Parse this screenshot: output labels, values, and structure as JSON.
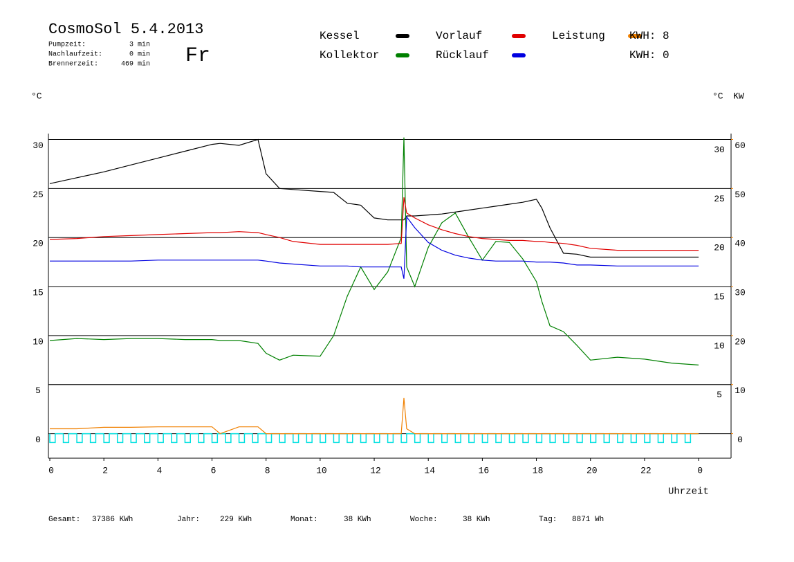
{
  "chart_data": {
    "type": "line",
    "title": "CosmoSol 5.4.2013",
    "info": [
      {
        "label": "Pumpzeit:",
        "value": "3 min"
      },
      {
        "label": "Nachlaufzeit:",
        "value": "0 min"
      },
      {
        "label": "Brennerzeit:",
        "value": "469 min"
      }
    ],
    "weekday": "Fr",
    "weekday_color": "#0000cc",
    "x": [
      0,
      1,
      2,
      3,
      4,
      5,
      6,
      6.3,
      7,
      7.7,
      8,
      8.5,
      9,
      10,
      10.5,
      11,
      11.5,
      12,
      12.5,
      13,
      13.1,
      13.2,
      13.5,
      14,
      14.5,
      15,
      15.5,
      16,
      16.5,
      17,
      17.5,
      18,
      18.2,
      18.5,
      19,
      19.5,
      20,
      21,
      22,
      23,
      24
    ],
    "series": [
      {
        "name": "Kessel",
        "color": "#000000",
        "values": [
          25.5,
          26.1,
          26.7,
          27.4,
          28.1,
          28.8,
          29.5,
          29.6,
          29.4,
          30.0,
          26.5,
          25.0,
          24.9,
          24.7,
          24.6,
          23.5,
          23.3,
          22.0,
          21.8,
          21.8,
          21.8,
          22.2,
          22.2,
          22.3,
          22.4,
          22.6,
          22.8,
          23.0,
          23.2,
          23.4,
          23.6,
          23.9,
          23.0,
          21.0,
          18.4,
          18.3,
          18.0,
          18.0,
          18.0,
          18.0,
          18.0
        ]
      },
      {
        "name": "Kollektor",
        "color": "#008000",
        "values": [
          9.5,
          9.7,
          9.6,
          9.7,
          9.7,
          9.6,
          9.6,
          9.5,
          9.5,
          9.2,
          8.2,
          7.5,
          8.0,
          7.9,
          10.0,
          14.0,
          17.0,
          14.7,
          16.5,
          20.0,
          30.2,
          17.0,
          15.0,
          19.0,
          21.5,
          22.5,
          20.0,
          17.7,
          19.6,
          19.5,
          17.8,
          15.5,
          13.5,
          11.0,
          10.4,
          9.0,
          7.5,
          7.8,
          7.6,
          7.2,
          7.0
        ]
      },
      {
        "name": "Vorlauf",
        "color": "#e00000",
        "values": [
          19.8,
          19.9,
          20.1,
          20.2,
          20.3,
          20.4,
          20.5,
          20.5,
          20.6,
          20.5,
          20.3,
          20.0,
          19.6,
          19.3,
          19.3,
          19.3,
          19.3,
          19.3,
          19.3,
          19.4,
          24.1,
          22.5,
          22.0,
          21.3,
          20.8,
          20.4,
          20.1,
          19.9,
          19.8,
          19.7,
          19.7,
          19.6,
          19.6,
          19.5,
          19.4,
          19.2,
          18.9,
          18.7,
          18.7,
          18.7,
          18.7
        ]
      },
      {
        "name": "Rücklauf",
        "color": "#0000e0",
        "values": [
          17.6,
          17.6,
          17.6,
          17.6,
          17.7,
          17.7,
          17.7,
          17.7,
          17.7,
          17.7,
          17.6,
          17.4,
          17.3,
          17.1,
          17.1,
          17.1,
          17.0,
          17.0,
          17.0,
          17.0,
          15.8,
          22.1,
          21.0,
          19.5,
          18.7,
          18.2,
          17.9,
          17.7,
          17.6,
          17.6,
          17.6,
          17.5,
          17.5,
          17.5,
          17.4,
          17.2,
          17.2,
          17.1,
          17.1,
          17.1,
          17.1
        ]
      },
      {
        "name": "Leistung",
        "color": "#f08000",
        "axis": "y2",
        "values": [
          1.0,
          1.0,
          1.3,
          1.3,
          1.4,
          1.4,
          1.4,
          0,
          1.4,
          1.4,
          0,
          0,
          0,
          0,
          0,
          0,
          0,
          0,
          0,
          0,
          7.3,
          1.0,
          0,
          0,
          0,
          0,
          0,
          0,
          0,
          0,
          0,
          0,
          0,
          0,
          0,
          0,
          0,
          0,
          0,
          0,
          0
        ]
      }
    ],
    "pump": {
      "color": "#00e0e0",
      "x": [
        0,
        0.5,
        1,
        1.5,
        2,
        2.5,
        3,
        3.5,
        4,
        4.5,
        5,
        5.5,
        6,
        6.5,
        7,
        7.5,
        8,
        8.5,
        9,
        9.5,
        10,
        10.5,
        11,
        11.5,
        12,
        12.5,
        13,
        13.5,
        14,
        14.5,
        15,
        15.5,
        16,
        16.5,
        17,
        17.5,
        18,
        18.5,
        19,
        19.5,
        20,
        20.5,
        21,
        21.5,
        22,
        22.5,
        23,
        23.5
      ],
      "values": [
        -0.9,
        -0.9,
        -0.9,
        -0.9,
        -0.9,
        -0.9,
        -0.9,
        -0.9,
        -0.9,
        -0.9,
        -0.9,
        -0.9,
        -0.9,
        -0.9,
        -0.9,
        -0.9,
        -0.9,
        -0.9,
        -0.9,
        -0.9,
        -0.9,
        -0.9,
        -0.9,
        -0.9,
        -0.9,
        -0.9,
        -0.9,
        -0.9,
        -0.9,
        -0.9,
        -0.9,
        -0.9,
        -0.9,
        -0.9,
        -0.9,
        -0.9,
        -0.9,
        -0.9,
        -0.9,
        -0.9,
        -0.9,
        -0.9,
        -0.9,
        -0.9,
        -0.9,
        -0.9,
        -0.9,
        -0.9
      ]
    },
    "kwh_labels": [
      {
        "text": "KWH: 8",
        "color": "#f08000"
      },
      {
        "text": "KWH: 0",
        "color": "#800080"
      }
    ],
    "y_label": "°C",
    "y2_label": "KW",
    "x_label": "Uhrzeit",
    "xlim": [
      0,
      25.2
    ],
    "xticks": [
      0,
      2,
      4,
      6,
      8,
      10,
      12,
      14,
      16,
      18,
      20,
      22,
      {
        "value": 24,
        "label": "0"
      }
    ],
    "ylim": [
      -2.5,
      30.6
    ],
    "yticks": [
      0,
      5,
      10,
      15,
      20,
      25,
      30
    ],
    "y2lim": [
      -5,
      61.2
    ],
    "y2ticks": [
      0,
      10,
      20,
      30,
      40,
      50,
      60
    ],
    "grid": true,
    "footer": [
      {
        "label": "Gesamt:",
        "value": "37386 KWh"
      },
      {
        "label": "Jahr:",
        "value": "229 KWh"
      },
      {
        "label": "Monat:",
        "value": "38 KWh"
      },
      {
        "label": "Woche:",
        "value": "38 KWh"
      },
      {
        "label": "Tag:",
        "value": "8871 Wh"
      }
    ]
  }
}
